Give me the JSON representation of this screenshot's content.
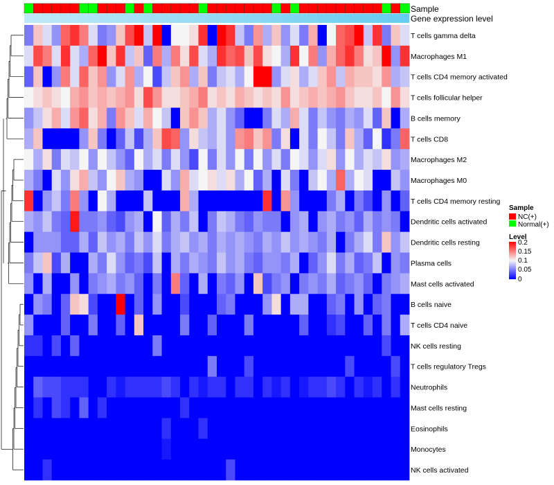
{
  "chart_data": {
    "type": "heatmap",
    "title": "",
    "top_annotations": [
      "Sample",
      "Gene expression level"
    ],
    "rows": [
      "T cells gamma delta",
      "Macrophages M1",
      "T cells CD4 memory activated",
      "T cells follicular helper",
      "B cells memory",
      "T cells CD8",
      "Macrophages M2",
      "Macrophages M0",
      "T cells CD4 memory resting",
      "Dendritic cells activated",
      "Dendritic cells resting",
      "Plasma cells",
      "Mast cells activated",
      "B cells naive",
      "T cells CD4 naive",
      "NK cells resting",
      "T cells regulatory  Tregs",
      "Neutrophils",
      "Mast cells resting",
      "Eosinophils",
      "Monocytes",
      "NK cells activated"
    ],
    "sample_groups": [
      "Normal(+)",
      "NC(+)",
      "NC(+)",
      "NC(+)",
      "NC(+)",
      "NC(+)",
      "Normal(+)",
      "Normal(+)",
      "NC(+)",
      "NC(+)",
      "NC(+)",
      "Normal(+)",
      "NC(+)",
      "Normal(+)",
      "NC(+)",
      "NC(+)",
      "NC(+)",
      "NC(+)",
      "NC(+)",
      "Normal(+)",
      "NC(+)",
      "NC(+)",
      "NC(+)",
      "NC(+)",
      "NC(+)",
      "NC(+)",
      "NC(+)",
      "Normal(+)",
      "NC(+)",
      "Normal(+)",
      "NC(+)",
      "NC(+)",
      "NC(+)",
      "NC(+)",
      "NC(+)",
      "NC(+)",
      "NC(+)",
      "NC(+)",
      "NC(+)",
      "Normal(+)",
      "NC(+)",
      "Normal(+)"
    ],
    "values": [
      [
        0.05,
        0.12,
        0.09,
        0.06,
        0.16,
        0.18,
        0.15,
        0.09,
        0.05,
        0.06,
        0.12,
        0.17,
        0.2,
        0.08,
        0.2,
        0.0,
        0.1,
        0.1,
        0.11,
        0.18,
        0.0,
        0.2,
        0.18,
        0.08,
        0.05,
        0.14,
        0.07,
        0.12,
        0.06,
        0.09,
        0.05,
        0.13,
        0.0,
        0.1,
        0.16,
        0.17,
        0.2,
        0.08,
        0.18,
        0.05,
        0.12,
        0.09
      ],
      [
        0.09,
        0.17,
        0.15,
        0.09,
        0.18,
        0.09,
        0.07,
        0.16,
        0.2,
        0.12,
        0.18,
        0.08,
        0.12,
        0.04,
        0.15,
        0.07,
        0.15,
        0.11,
        0.17,
        0.09,
        0.07,
        0.18,
        0.16,
        0.17,
        0.12,
        0.17,
        0.11,
        0.1,
        0.07,
        0.18,
        0.1,
        0.15,
        0.06,
        0.13,
        0.16,
        0.18,
        0.15,
        0.11,
        0.12,
        0.2,
        0.06,
        0.18
      ],
      [
        0.04,
        0.12,
        0.0,
        0.06,
        0.15,
        0.09,
        0.16,
        0.12,
        0.14,
        0.06,
        0.09,
        0.14,
        0.07,
        0.1,
        0.03,
        0.08,
        0.12,
        0.14,
        0.07,
        0.12,
        0.05,
        0.08,
        0.09,
        0.07,
        0.1,
        0.2,
        0.2,
        0.06,
        0.09,
        0.11,
        0.07,
        0.09,
        0.12,
        0.14,
        0.08,
        0.13,
        0.12,
        0.12,
        0.11,
        0.14,
        0.07,
        0.08
      ],
      [
        0.1,
        0.11,
        0.12,
        0.11,
        0.1,
        0.13,
        0.14,
        0.12,
        0.13,
        0.12,
        0.13,
        0.14,
        0.11,
        0.17,
        0.14,
        0.11,
        0.11,
        0.12,
        0.13,
        0.15,
        0.11,
        0.12,
        0.11,
        0.13,
        0.12,
        0.11,
        0.12,
        0.11,
        0.14,
        0.11,
        0.12,
        0.13,
        0.12,
        0.13,
        0.14,
        0.12,
        0.11,
        0.11,
        0.12,
        0.1,
        0.14,
        0.11
      ],
      [
        0.06,
        0.08,
        0.11,
        0.13,
        0.09,
        0.14,
        0.16,
        0.11,
        0.13,
        0.05,
        0.14,
        0.12,
        0.09,
        0.13,
        0.1,
        0.08,
        0.0,
        0.12,
        0.14,
        0.12,
        0.07,
        0.09,
        0.06,
        0.04,
        0.0,
        0.0,
        0.05,
        0.09,
        0.07,
        0.13,
        0.09,
        0.05,
        0.08,
        0.06,
        0.05,
        0.07,
        0.06,
        0.09,
        0.04,
        0.12,
        0.0,
        0.07
      ],
      [
        0.07,
        0.12,
        0.0,
        0.0,
        0.0,
        0.0,
        0.06,
        0.12,
        0.05,
        0.0,
        0.04,
        0.08,
        0.03,
        0.07,
        0.12,
        0.17,
        0.16,
        0.06,
        0.11,
        0.08,
        0.07,
        0.09,
        0.06,
        0.14,
        0.15,
        0.12,
        0.14,
        0.05,
        0.11,
        0.0,
        0.09,
        0.05,
        0.1,
        0.08,
        0.05,
        0.12,
        0.07,
        0.04,
        0.1,
        0.02,
        0.05,
        0.16
      ],
      [
        0.1,
        0.07,
        0.11,
        0.05,
        0.09,
        0.08,
        0.1,
        0.06,
        0.1,
        0.08,
        0.06,
        0.04,
        0.1,
        0.07,
        0.09,
        0.05,
        0.09,
        0.06,
        0.03,
        0.1,
        0.05,
        0.09,
        0.06,
        0.1,
        0.05,
        0.1,
        0.06,
        0.09,
        0.05,
        0.1,
        0.09,
        0.06,
        0.09,
        0.11,
        0.06,
        0.1,
        0.07,
        0.09,
        0.08,
        0.11,
        0.06,
        0.07
      ],
      [
        0.07,
        0.05,
        0.0,
        0.09,
        0.06,
        0.11,
        0.13,
        0.08,
        0.06,
        0.1,
        0.12,
        0.07,
        0.06,
        0.0,
        0.0,
        0.09,
        0.06,
        0.13,
        0.09,
        0.1,
        0.11,
        0.09,
        0.11,
        0.07,
        0.1,
        0.04,
        0.07,
        0.0,
        0.09,
        0.05,
        0.0,
        0.08,
        0.1,
        0.07,
        0.16,
        0.07,
        0.1,
        0.09,
        0.0,
        0.0,
        0.08,
        0.06
      ],
      [
        0.18,
        0.0,
        0.06,
        0.08,
        0.05,
        0.15,
        0.06,
        0.0,
        0.1,
        0.07,
        0.0,
        0.0,
        0.0,
        0.08,
        0.0,
        0.0,
        0.0,
        0.13,
        0.07,
        0.0,
        0.0,
        0.0,
        0.0,
        0.0,
        0.0,
        0.0,
        0.18,
        0.0,
        0.14,
        0.06,
        0.0,
        0.0,
        0.0,
        0.05,
        0.07,
        0.0,
        0.05,
        0.03,
        0.0,
        0.06,
        0.0,
        0.04
      ],
      [
        0.07,
        0.06,
        0.08,
        0.05,
        0.04,
        0.19,
        0.05,
        0.05,
        0.06,
        0.04,
        0.03,
        0.06,
        0.07,
        0.0,
        0.1,
        0.04,
        0.07,
        0.05,
        0.08,
        0.0,
        0.05,
        0.08,
        0.07,
        0.05,
        0.04,
        0.06,
        0.05,
        0.05,
        0.0,
        0.06,
        0.07,
        0.0,
        0.06,
        0.07,
        0.05,
        0.06,
        0.04,
        0.07,
        0.05,
        0.06,
        0.05,
        0.0
      ],
      [
        0.0,
        0.06,
        0.06,
        0.06,
        0.04,
        0.04,
        0.07,
        0.04,
        0.08,
        0.06,
        0.07,
        0.05,
        0.08,
        0.06,
        0.09,
        0.05,
        0.07,
        0.08,
        0.06,
        0.07,
        0.05,
        0.07,
        0.06,
        0.07,
        0.06,
        0.05,
        0.07,
        0.06,
        0.08,
        0.06,
        0.07,
        0.06,
        0.05,
        0.07,
        0.0,
        0.05,
        0.07,
        0.09,
        0.05,
        0.12,
        0.06,
        0.08
      ],
      [
        0.05,
        0.08,
        0.12,
        0.03,
        0.07,
        0.0,
        0.0,
        0.07,
        0.05,
        0.09,
        0.06,
        0.04,
        0.05,
        0.03,
        0.08,
        0.0,
        0.07,
        0.05,
        0.07,
        0.06,
        0.05,
        0.08,
        0.06,
        0.07,
        0.05,
        0.04,
        0.06,
        0.06,
        0.05,
        0.07,
        0.0,
        0.04,
        0.06,
        0.09,
        0.05,
        0.07,
        0.04,
        0.05,
        0.08,
        0.0,
        0.06,
        0.05
      ],
      [
        0.06,
        0.0,
        0.07,
        0.0,
        0.0,
        0.06,
        0.0,
        0.05,
        0.06,
        0.07,
        0.05,
        0.06,
        0.04,
        0.0,
        0.05,
        0.0,
        0.15,
        0.04,
        0.0,
        0.07,
        0.0,
        0.05,
        0.04,
        0.06,
        0.0,
        0.12,
        0.03,
        0.05,
        0.06,
        0.0,
        0.05,
        0.06,
        0.05,
        0.07,
        0.04,
        0.05,
        0.06,
        0.04,
        0.0,
        0.05,
        0.06,
        0.07
      ],
      [
        0.0,
        0.06,
        0.05,
        0.0,
        0.04,
        0.12,
        0.11,
        0.03,
        0.0,
        0.0,
        0.2,
        0.0,
        0.04,
        0.0,
        0.06,
        0.0,
        0.0,
        0.03,
        0.0,
        0.0,
        0.0,
        0.04,
        0.05,
        0.0,
        0.0,
        0.0,
        0.06,
        0.11,
        0.0,
        0.07,
        0.07,
        0.0,
        0.0,
        0.04,
        0.05,
        0.0,
        0.06,
        0.0,
        0.04,
        0.05,
        0.0,
        0.0
      ],
      [
        0.06,
        0.0,
        0.0,
        0.0,
        0.04,
        0.0,
        0.0,
        0.05,
        0.0,
        0.0,
        0.04,
        0.0,
        0.12,
        0.0,
        0.0,
        0.0,
        0.0,
        0.05,
        0.0,
        0.0,
        0.04,
        0.0,
        0.0,
        0.0,
        0.05,
        0.0,
        0.0,
        0.0,
        0.0,
        0.0,
        0.04,
        0.0,
        0.0,
        0.02,
        0.03,
        0.0,
        0.0,
        0.04,
        0.0,
        0.05,
        0.0,
        0.07
      ],
      [
        0.02,
        0.02,
        0.0,
        0.03,
        0.0,
        0.04,
        0.0,
        0.0,
        0.0,
        0.0,
        0.0,
        0.0,
        0.0,
        0.0,
        0.05,
        0.0,
        0.0,
        0.0,
        0.0,
        0.0,
        0.0,
        0.0,
        0.0,
        0.0,
        0.0,
        0.0,
        0.0,
        0.0,
        0.0,
        0.0,
        0.0,
        0.0,
        0.0,
        0.0,
        0.0,
        0.0,
        0.0,
        0.0,
        0.0,
        0.03,
        0.0,
        0.0
      ],
      [
        0.0,
        0.0,
        0.0,
        0.0,
        0.0,
        0.0,
        0.0,
        0.0,
        0.0,
        0.0,
        0.0,
        0.0,
        0.0,
        0.0,
        0.0,
        0.0,
        0.0,
        0.0,
        0.0,
        0.0,
        0.05,
        0.0,
        0.0,
        0.0,
        0.03,
        0.0,
        0.0,
        0.0,
        0.0,
        0.0,
        0.0,
        0.0,
        0.0,
        0.0,
        0.0,
        0.03,
        0.0,
        0.0,
        0.0,
        0.0,
        0.03,
        0.0
      ],
      [
        0.0,
        0.04,
        0.03,
        0.03,
        0.02,
        0.02,
        0.02,
        0.0,
        0.0,
        0.02,
        0.01,
        0.02,
        0.02,
        0.02,
        0.02,
        0.03,
        0.02,
        0.0,
        0.02,
        0.01,
        0.02,
        0.02,
        0.0,
        0.02,
        0.02,
        0.0,
        0.02,
        0.01,
        0.02,
        0.0,
        0.01,
        0.02,
        0.02,
        0.03,
        0.02,
        0.0,
        0.02,
        0.01,
        0.02,
        0.0,
        0.02,
        0.0
      ],
      [
        0.0,
        0.02,
        0.0,
        0.03,
        0.02,
        0.0,
        0.04,
        0.0,
        0.02,
        0.0,
        0.0,
        0.0,
        0.0,
        0.0,
        0.0,
        0.0,
        0.0,
        0.02,
        0.0,
        0.0,
        0.0,
        0.0,
        0.0,
        0.0,
        0.0,
        0.0,
        0.0,
        0.0,
        0.0,
        0.0,
        0.0,
        0.0,
        0.0,
        0.0,
        0.0,
        0.0,
        0.0,
        0.0,
        0.0,
        0.0,
        0.0,
        0.0
      ],
      [
        0.0,
        0.0,
        0.0,
        0.0,
        0.0,
        0.0,
        0.0,
        0.0,
        0.0,
        0.0,
        0.0,
        0.0,
        0.0,
        0.0,
        0.0,
        0.02,
        0.0,
        0.0,
        0.0,
        0.02,
        0.0,
        0.0,
        0.0,
        0.0,
        0.0,
        0.0,
        0.0,
        0.0,
        0.0,
        0.0,
        0.0,
        0.0,
        0.0,
        0.0,
        0.0,
        0.0,
        0.0,
        0.0,
        0.0,
        0.0,
        0.0,
        0.0
      ],
      [
        0.0,
        0.0,
        0.0,
        0.0,
        0.0,
        0.0,
        0.0,
        0.0,
        0.0,
        0.0,
        0.0,
        0.0,
        0.0,
        0.0,
        0.0,
        0.01,
        0.0,
        0.0,
        0.0,
        0.0,
        0.0,
        0.0,
        0.0,
        0.0,
        0.0,
        0.0,
        0.0,
        0.0,
        0.0,
        0.0,
        0.0,
        0.0,
        0.0,
        0.0,
        0.0,
        0.0,
        0.0,
        0.0,
        0.0,
        0.0,
        0.0,
        0.0
      ],
      [
        0.0,
        0.0,
        0.02,
        0.0,
        0.0,
        0.0,
        0.0,
        0.0,
        0.0,
        0.0,
        0.0,
        0.0,
        0.0,
        0.0,
        0.0,
        0.0,
        0.0,
        0.0,
        0.0,
        0.0,
        0.0,
        0.0,
        0.03,
        0.0,
        0.0,
        0.0,
        0.0,
        0.0,
        0.0,
        0.0,
        0.0,
        0.0,
        0.0,
        0.0,
        0.0,
        0.0,
        0.0,
        0.0,
        0.0,
        0.0,
        0.0,
        0.0
      ]
    ],
    "color_scale": {
      "min": 0,
      "mid": 0.1,
      "max": 0.2,
      "low_color": "#0000ff",
      "mid_color": "#f5f5f5",
      "high_color": "#ff0000"
    },
    "expression_bar_colors": [
      "#66ccf0",
      "#bfe8f8"
    ],
    "legends": {
      "sample": {
        "title": "Sample",
        "items": [
          {
            "label": "NC(+)",
            "color": "#ff0000"
          },
          {
            "label": "Normal(+)",
            "color": "#00ff00"
          }
        ]
      },
      "level": {
        "title": "Level",
        "ticks": [
          "0.2",
          "0.15",
          "0.1",
          "0.05",
          "0"
        ]
      }
    }
  }
}
